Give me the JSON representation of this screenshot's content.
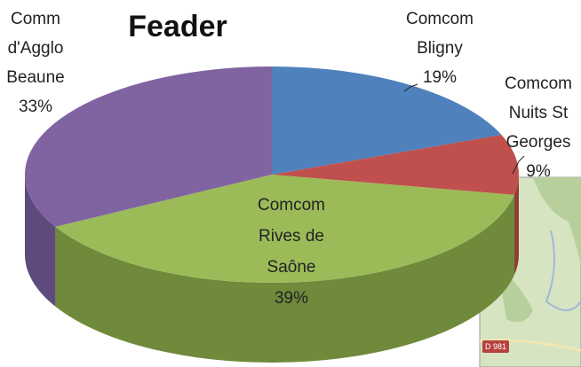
{
  "chart_data": {
    "type": "pie",
    "title": "Feader",
    "categories": [
      [
        "Comcom",
        "Bligny"
      ],
      [
        "Comcom",
        "Nuits St",
        "Georges"
      ],
      [
        "Comcom",
        "Rives de",
        "Saône"
      ],
      [
        "Comm",
        "d'Agglo",
        "Beaune"
      ]
    ],
    "values": [
      19,
      9,
      39,
      33
    ],
    "value_labels": [
      "19%",
      "9%",
      "39%",
      "33%"
    ],
    "colors": [
      "#4f81bd",
      "#c0504d",
      "#9bbb59",
      "#8064a2"
    ],
    "side_colors": [
      "#3b6396",
      "#8f3a37",
      "#6e8a3a",
      "#5e4a7d"
    ]
  },
  "map_label": "D 981"
}
